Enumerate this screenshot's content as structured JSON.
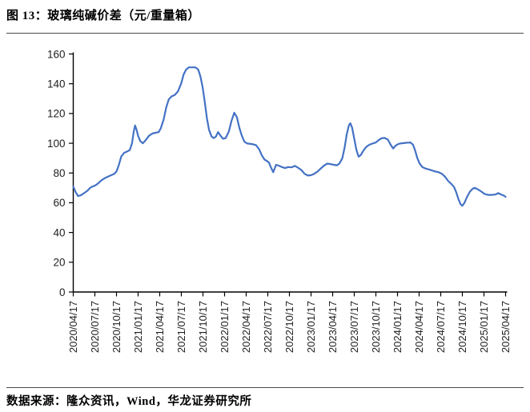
{
  "header": {
    "title": "图 13：玻璃纯碱价差（元/重量箱）"
  },
  "footer": {
    "source": "数据来源：隆众资讯，Wind，华龙证券研究所"
  },
  "chart_data": {
    "type": "line",
    "title": "玻璃纯碱价差",
    "unit": "元/重量箱",
    "xlabel": "",
    "ylabel": "",
    "ylim": [
      0,
      160
    ],
    "yticks": [
      0,
      20,
      40,
      60,
      80,
      100,
      120,
      140,
      160
    ],
    "grid": false,
    "legend": "none",
    "axis_color": "#000000",
    "x_tick_labels": [
      "2020/04/17",
      "2020/07/17",
      "2020/10/17",
      "2021/01/17",
      "2021/04/17",
      "2021/07/17",
      "2021/10/17",
      "2022/01/17",
      "2022/04/17",
      "2022/07/17",
      "2022/10/17",
      "2023/01/17",
      "2023/04/17",
      "2023/07/17",
      "2023/10/17",
      "2024/01/17",
      "2024/04/17",
      "2024/07/17",
      "2024/10/17",
      "2025/01/17",
      "2025/04/17"
    ],
    "series": [
      {
        "name": "玻璃纯碱价差",
        "color": "#4472C4",
        "points": [
          [
            0.0,
            71
          ],
          [
            0.1,
            67.5
          ],
          [
            0.22,
            64.5
          ],
          [
            0.35,
            65
          ],
          [
            0.5,
            66.5
          ],
          [
            0.65,
            68
          ],
          [
            0.78,
            70
          ],
          [
            0.9,
            71
          ],
          [
            1.0,
            71.5
          ],
          [
            1.15,
            73
          ],
          [
            1.3,
            75
          ],
          [
            1.45,
            76.5
          ],
          [
            1.6,
            77.5
          ],
          [
            1.75,
            78.5
          ],
          [
            1.9,
            79.5
          ],
          [
            2.0,
            81
          ],
          [
            2.1,
            85
          ],
          [
            2.22,
            91
          ],
          [
            2.35,
            93.5
          ],
          [
            2.5,
            94.5
          ],
          [
            2.62,
            95.5
          ],
          [
            2.72,
            100
          ],
          [
            2.8,
            108
          ],
          [
            2.86,
            112
          ],
          [
            2.93,
            109
          ],
          [
            3.0,
            105
          ],
          [
            3.1,
            101.5
          ],
          [
            3.22,
            100
          ],
          [
            3.35,
            102
          ],
          [
            3.5,
            105
          ],
          [
            3.65,
            106.5
          ],
          [
            3.8,
            107
          ],
          [
            3.95,
            107.5
          ],
          [
            4.05,
            110
          ],
          [
            4.18,
            116
          ],
          [
            4.3,
            124
          ],
          [
            4.42,
            129.5
          ],
          [
            4.55,
            131.5
          ],
          [
            4.7,
            132.5
          ],
          [
            4.85,
            135
          ],
          [
            5.0,
            140.5
          ],
          [
            5.1,
            146
          ],
          [
            5.22,
            149.5
          ],
          [
            5.35,
            151
          ],
          [
            5.5,
            151
          ],
          [
            5.65,
            151
          ],
          [
            5.78,
            149.5
          ],
          [
            5.88,
            145
          ],
          [
            5.98,
            138
          ],
          [
            6.08,
            128
          ],
          [
            6.18,
            117
          ],
          [
            6.28,
            109
          ],
          [
            6.4,
            104.5
          ],
          [
            6.5,
            103.5
          ],
          [
            6.6,
            104.5
          ],
          [
            6.7,
            107.5
          ],
          [
            6.82,
            105
          ],
          [
            6.93,
            103
          ],
          [
            7.05,
            103.5
          ],
          [
            7.2,
            108
          ],
          [
            7.32,
            115
          ],
          [
            7.45,
            120.5
          ],
          [
            7.57,
            117.5
          ],
          [
            7.68,
            110.5
          ],
          [
            7.8,
            105
          ],
          [
            7.92,
            101
          ],
          [
            8.05,
            99.8
          ],
          [
            8.25,
            99.5
          ],
          [
            8.45,
            98.8
          ],
          [
            8.6,
            96
          ],
          [
            8.72,
            92
          ],
          [
            8.85,
            89
          ],
          [
            8.95,
            88.2
          ],
          [
            9.05,
            87
          ],
          [
            9.15,
            83.5
          ],
          [
            9.25,
            80.5
          ],
          [
            9.38,
            85.5
          ],
          [
            9.5,
            85
          ],
          [
            9.65,
            84
          ],
          [
            9.8,
            83.3
          ],
          [
            9.95,
            84
          ],
          [
            10.1,
            83.8
          ],
          [
            10.25,
            84.8
          ],
          [
            10.4,
            83.5
          ],
          [
            10.55,
            82
          ],
          [
            10.7,
            79.5
          ],
          [
            10.85,
            78.3
          ],
          [
            11.0,
            78.5
          ],
          [
            11.15,
            79.5
          ],
          [
            11.3,
            81
          ],
          [
            11.45,
            83
          ],
          [
            11.6,
            85
          ],
          [
            11.75,
            86.3
          ],
          [
            11.9,
            86
          ],
          [
            12.05,
            85.5
          ],
          [
            12.2,
            85.2
          ],
          [
            12.32,
            86.5
          ],
          [
            12.45,
            90
          ],
          [
            12.55,
            97
          ],
          [
            12.65,
            106
          ],
          [
            12.75,
            112
          ],
          [
            12.82,
            113.5
          ],
          [
            12.9,
            110.5
          ],
          [
            13.0,
            103
          ],
          [
            13.1,
            95.5
          ],
          [
            13.2,
            91
          ],
          [
            13.3,
            92
          ],
          [
            13.42,
            95
          ],
          [
            13.55,
            97.5
          ],
          [
            13.7,
            99
          ],
          [
            13.85,
            99.8
          ],
          [
            14.0,
            100.5
          ],
          [
            14.12,
            102
          ],
          [
            14.25,
            103.3
          ],
          [
            14.4,
            103.6
          ],
          [
            14.55,
            102.5
          ],
          [
            14.68,
            99
          ],
          [
            14.8,
            96.5
          ],
          [
            14.92,
            98.5
          ],
          [
            15.05,
            99.6
          ],
          [
            15.2,
            100
          ],
          [
            15.4,
            100.3
          ],
          [
            15.6,
            100.5
          ],
          [
            15.72,
            99
          ],
          [
            15.82,
            95
          ],
          [
            15.92,
            90
          ],
          [
            16.02,
            86.5
          ],
          [
            16.15,
            84
          ],
          [
            16.3,
            83
          ],
          [
            16.5,
            82.2
          ],
          [
            16.7,
            81.2
          ],
          [
            16.9,
            80.5
          ],
          [
            17.05,
            79.5
          ],
          [
            17.2,
            77.5
          ],
          [
            17.35,
            74.5
          ],
          [
            17.5,
            72.5
          ],
          [
            17.62,
            70.5
          ],
          [
            17.72,
            67
          ],
          [
            17.82,
            62.5
          ],
          [
            17.92,
            59
          ],
          [
            18.0,
            58
          ],
          [
            18.1,
            60
          ],
          [
            18.22,
            64
          ],
          [
            18.35,
            67.5
          ],
          [
            18.48,
            69.5
          ],
          [
            18.58,
            70
          ],
          [
            18.72,
            69
          ],
          [
            18.88,
            67.5
          ],
          [
            19.02,
            66
          ],
          [
            19.18,
            65.3
          ],
          [
            19.35,
            65.3
          ],
          [
            19.52,
            65.5
          ],
          [
            19.66,
            66.5
          ],
          [
            19.8,
            65.5
          ],
          [
            19.92,
            64.8
          ],
          [
            20.0,
            64
          ]
        ]
      }
    ]
  }
}
